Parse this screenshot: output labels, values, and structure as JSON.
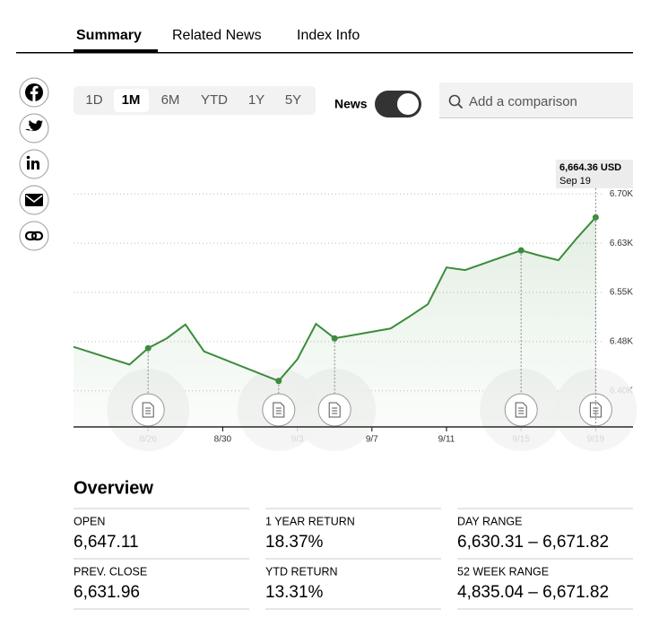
{
  "tabs": [
    "Summary",
    "Related News",
    "Index Info"
  ],
  "ranges": [
    "1D",
    "1M",
    "6M",
    "YTD",
    "1Y",
    "5Y"
  ],
  "news_toggle": {
    "label": "News"
  },
  "search": {
    "placeholder": "Add a comparison"
  },
  "chart_data": {
    "type": "line",
    "x": [
      "8/22",
      "8/25",
      "8/26",
      "8/27",
      "8/28",
      "8/29",
      "9/2",
      "9/3",
      "9/4",
      "9/5",
      "9/8",
      "9/9",
      "9/10",
      "9/11",
      "9/12",
      "9/15",
      "9/16",
      "9/17",
      "9/18",
      "9/19"
    ],
    "series": [
      {
        "color": "#3b8c3b",
        "values": [
          6467,
          6440,
          6465,
          6480,
          6501,
          6460,
          6415,
          6448,
          6502,
          6480,
          6495,
          6513,
          6532,
          6588,
          6584,
          6614,
          6606,
          6599,
          6633,
          6664.36
        ]
      }
    ],
    "xlim": [
      "8/22",
      "9/21"
    ],
    "xticks": [
      "8/26",
      "8/30",
      "9/3",
      "9/7",
      "9/11",
      "9/15",
      "9/19"
    ],
    "ylim": [
      6345,
      6755
    ],
    "yticks": [
      {
        "value": 6400,
        "label": "6.40K"
      },
      {
        "value": 6475,
        "label": "6.48K"
      },
      {
        "value": 6550,
        "label": "6.55K"
      },
      {
        "value": 6625,
        "label": "6.63K"
      },
      {
        "value": 6700,
        "label": "6.70K"
      }
    ],
    "grid": true,
    "news_dates": [
      "8/26",
      "9/2",
      "9/5",
      "9/15",
      "9/19"
    ],
    "tooltip": {
      "label": "6,664.36 USD",
      "date": "Sep 19"
    }
  },
  "overview": {
    "title": "Overview",
    "items": [
      {
        "label": "OPEN",
        "value": "6,647.11"
      },
      {
        "label": "1 YEAR RETURN",
        "value": "18.37%"
      },
      {
        "label": "DAY RANGE",
        "value": "6,630.31 – 6,671.82"
      },
      {
        "label": "PREV. CLOSE",
        "value": "6,631.96"
      },
      {
        "label": "YTD RETURN",
        "value": "13.31%"
      },
      {
        "label": "52 WEEK RANGE",
        "value": "4,835.04 – 6,671.82"
      }
    ]
  }
}
